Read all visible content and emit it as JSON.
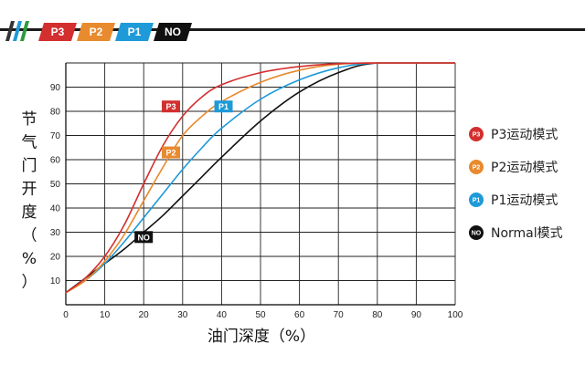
{
  "header": {
    "modes": [
      {
        "label": "P3",
        "color": "#d32f2f"
      },
      {
        "label": "P2",
        "color": "#e88a2e"
      },
      {
        "label": "P1",
        "color": "#1e9ad8"
      },
      {
        "label": "NO",
        "color": "#111111"
      }
    ],
    "stripe_colors": [
      "#333333",
      "#1e9ad8",
      "#2e9a3e"
    ]
  },
  "chart_data": {
    "type": "line",
    "xlabel": "油门深度（%）",
    "ylabel_chars": [
      "节",
      "气",
      "门",
      "开",
      "度",
      "（",
      "%",
      "）"
    ],
    "xlim": [
      0,
      100
    ],
    "ylim": [
      0,
      100
    ],
    "xticks": [
      0,
      10,
      20,
      30,
      40,
      50,
      60,
      70,
      80,
      90,
      100
    ],
    "yticks": [
      10,
      20,
      30,
      40,
      50,
      60,
      70,
      80,
      90
    ],
    "grid": true,
    "legend_position": "right",
    "series": [
      {
        "name": "P3运动模式",
        "badge": "P3",
        "color": "#d32f2f",
        "points": [
          [
            0,
            5
          ],
          [
            5,
            11
          ],
          [
            10,
            20
          ],
          [
            15,
            33
          ],
          [
            20,
            50
          ],
          [
            25,
            66
          ],
          [
            30,
            78
          ],
          [
            35,
            86
          ],
          [
            40,
            91
          ],
          [
            50,
            96
          ],
          [
            60,
            98.5
          ],
          [
            70,
            99.7
          ],
          [
            80,
            100
          ],
          [
            100,
            100
          ]
        ]
      },
      {
        "name": "P2运动模式",
        "badge": "P2",
        "color": "#e88a2e",
        "points": [
          [
            0,
            5
          ],
          [
            5,
            10
          ],
          [
            10,
            18
          ],
          [
            15,
            29
          ],
          [
            20,
            43
          ],
          [
            25,
            57
          ],
          [
            30,
            70
          ],
          [
            35,
            78
          ],
          [
            40,
            84
          ],
          [
            50,
            92
          ],
          [
            60,
            97
          ],
          [
            70,
            99.5
          ],
          [
            80,
            100
          ],
          [
            100,
            100
          ]
        ]
      },
      {
        "name": "P1运动模式",
        "badge": "P1",
        "color": "#1e9ad8",
        "points": [
          [
            0,
            5
          ],
          [
            5,
            10
          ],
          [
            10,
            17
          ],
          [
            15,
            26
          ],
          [
            20,
            36
          ],
          [
            25,
            46
          ],
          [
            30,
            56
          ],
          [
            35,
            65
          ],
          [
            40,
            73
          ],
          [
            50,
            85
          ],
          [
            60,
            93
          ],
          [
            70,
            98
          ],
          [
            80,
            100
          ],
          [
            100,
            100
          ]
        ]
      },
      {
        "name": "Normal模式",
        "badge": "NO",
        "color": "#111111",
        "points": [
          [
            0,
            5
          ],
          [
            5,
            11
          ],
          [
            10,
            17
          ],
          [
            15,
            23
          ],
          [
            20,
            30
          ],
          [
            25,
            37
          ],
          [
            30,
            45
          ],
          [
            35,
            53
          ],
          [
            40,
            61
          ],
          [
            50,
            76
          ],
          [
            60,
            88
          ],
          [
            70,
            96
          ],
          [
            80,
            100
          ],
          [
            100,
            100
          ]
        ]
      }
    ],
    "curve_tags": [
      {
        "label": "P3",
        "x": 27,
        "y": 82,
        "color": "#d32f2f"
      },
      {
        "label": "P1",
        "x": 40.5,
        "y": 82,
        "color": "#1e9ad8"
      },
      {
        "label": "P2",
        "x": 27,
        "y": 63,
        "color": "#e88a2e"
      },
      {
        "label": "NO",
        "x": 20,
        "y": 28,
        "color": "#111111"
      }
    ]
  }
}
